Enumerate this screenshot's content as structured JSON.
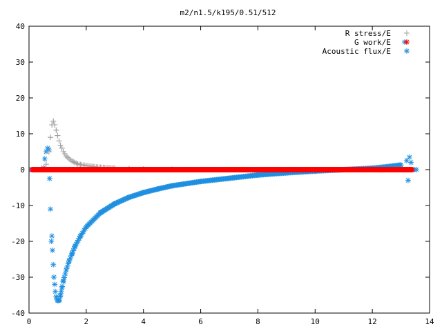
{
  "chart_data": {
    "type": "scatter",
    "title": "m2/n1.5/k195/0.51/512",
    "xlabel": "",
    "ylabel": "",
    "xlim": [
      0,
      14
    ],
    "ylim": [
      -40,
      40
    ],
    "x_ticks": [
      "0",
      "2",
      "4",
      "6",
      "8",
      "10",
      "12",
      "14"
    ],
    "y_ticks": [
      "40",
      "30",
      "20",
      "10",
      "0",
      "-10",
      "-20",
      "-30",
      "-40"
    ],
    "grid": false,
    "legend_position": "top-right",
    "colors": {
      "r_stress": "#a0a0a0",
      "g_work": "#ff0000",
      "acoustic_flux": "#1f8fe0"
    },
    "series": [
      {
        "name": "R stress/E",
        "marker": "plus",
        "x": [
          0.5,
          0.6,
          0.7,
          0.75,
          0.8,
          0.85,
          0.9,
          0.95,
          1.0,
          1.05,
          1.1,
          1.15,
          1.2,
          1.3,
          1.4,
          1.5,
          1.6,
          1.7,
          1.8,
          2.0,
          2.2,
          2.4,
          2.6,
          2.8,
          3.0,
          3.5,
          4.0,
          5.0,
          6.0,
          8.0,
          10.0,
          12.0,
          13.0,
          13.3
        ],
        "y": [
          0.3,
          1.5,
          5.0,
          9.0,
          12.5,
          13.5,
          12.5,
          11.0,
          9.5,
          8.0,
          6.8,
          6.0,
          5.0,
          3.8,
          3.0,
          2.4,
          2.0,
          1.6,
          1.4,
          1.1,
          0.9,
          0.7,
          0.6,
          0.5,
          0.4,
          0.3,
          0.2,
          0.1,
          0.0,
          0.0,
          0.0,
          0.0,
          0.0,
          0.0
        ]
      },
      {
        "name": "G work/E",
        "marker": "star",
        "x_range": [
          0.1,
          13.4
        ],
        "y_constant": 0
      },
      {
        "name": "Acoustic flux/E",
        "marker": "star",
        "x": [
          0.5,
          0.55,
          0.6,
          0.65,
          0.7,
          0.72,
          0.75,
          0.78,
          0.8,
          0.82,
          0.85,
          0.87,
          0.9,
          0.92,
          0.95,
          1.0,
          1.05,
          1.1,
          1.15,
          1.2,
          1.3,
          1.4,
          1.5,
          1.6,
          1.8,
          2.0,
          2.5,
          3.0,
          3.5,
          4.0,
          4.5,
          5.0,
          6.0,
          7.0,
          8.0,
          9.0,
          10.0,
          11.0,
          12.0,
          12.5,
          13.0,
          13.2,
          13.25,
          13.3,
          13.35
        ],
        "y": [
          0.5,
          3.0,
          5.0,
          6.0,
          5.5,
          -2.5,
          -11.0,
          -20.0,
          -18.5,
          -22.5,
          -26.5,
          -30.0,
          -32.0,
          -34.0,
          -35.5,
          -36.5,
          -36.5,
          -35.0,
          -33.0,
          -31.0,
          -28.0,
          -25.5,
          -23.5,
          -21.5,
          -18.5,
          -16.0,
          -12.0,
          -9.5,
          -7.7,
          -6.4,
          -5.4,
          -4.5,
          -3.3,
          -2.4,
          -1.5,
          -0.9,
          -0.4,
          0.0,
          0.4,
          0.8,
          1.3,
          2.5,
          -3.0,
          3.5,
          2.0
        ]
      }
    ]
  }
}
